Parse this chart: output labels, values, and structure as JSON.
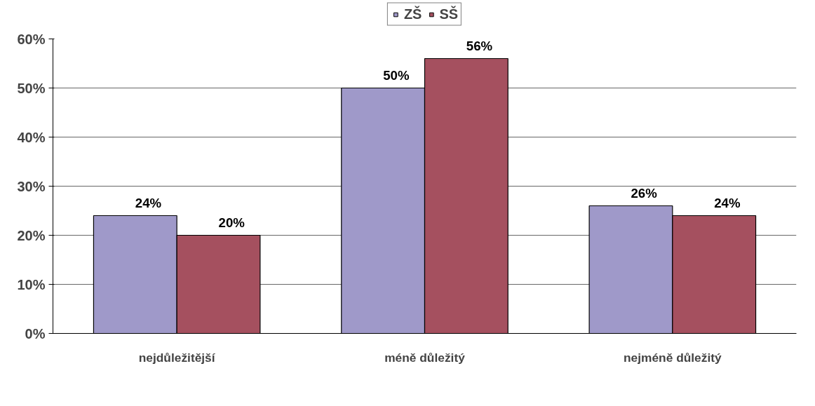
{
  "chart_data": {
    "type": "bar",
    "categories": [
      "nejdůležitější",
      "méně důležitý",
      "nejméně důležitý"
    ],
    "series": [
      {
        "name": "ZŠ",
        "color": "#9f99c9",
        "values": [
          24,
          50,
          26
        ],
        "value_labels": [
          "24%",
          "50%",
          "26%"
        ]
      },
      {
        "name": "SŠ",
        "color": "#a5505f",
        "values": [
          20,
          56,
          24
        ],
        "value_labels": [
          "20%",
          "56%",
          "24%"
        ]
      }
    ],
    "ylim": [
      0,
      60
    ],
    "yticks": [
      {
        "value": 0,
        "label": "0%"
      },
      {
        "value": 10,
        "label": "10%"
      },
      {
        "value": 20,
        "label": "20%"
      },
      {
        "value": 30,
        "label": "30%"
      },
      {
        "value": 40,
        "label": "40%"
      },
      {
        "value": 50,
        "label": "50%"
      },
      {
        "value": 60,
        "label": "60%"
      }
    ],
    "grid": "y",
    "legend": "top"
  }
}
